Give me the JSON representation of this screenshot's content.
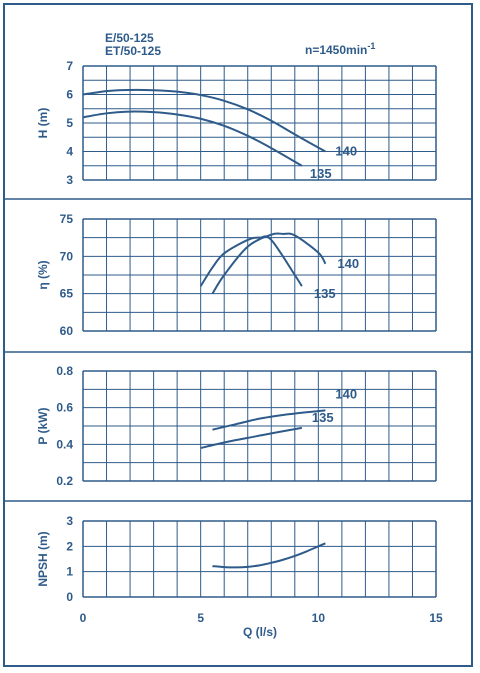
{
  "header": {
    "model_line1": "E/50-125",
    "model_line2": "ET/50-125",
    "speed_prefix": "n=1450min",
    "speed_sup": "-1"
  },
  "colors": {
    "primary": "#2e5b8a"
  },
  "chart_data": [
    {
      "type": "line",
      "ylabel": "H (m)",
      "xlim": [
        0,
        15
      ],
      "ylim": [
        3,
        7
      ],
      "yticks": [
        3,
        4,
        5,
        6,
        7
      ],
      "grid": true,
      "series": [
        {
          "name": "140",
          "x": [
            0,
            1,
            2,
            3,
            4,
            5,
            6,
            7,
            8,
            9,
            10.3
          ],
          "y": [
            6.0,
            6.12,
            6.16,
            6.15,
            6.1,
            5.98,
            5.78,
            5.48,
            5.08,
            4.6,
            4.0
          ]
        },
        {
          "name": "135",
          "x": [
            0,
            1,
            2,
            3,
            4,
            5,
            6,
            7,
            8,
            9.3
          ],
          "y": [
            5.2,
            5.34,
            5.4,
            5.38,
            5.3,
            5.15,
            4.9,
            4.55,
            4.12,
            3.5
          ]
        }
      ]
    },
    {
      "type": "line",
      "ylabel": "η (%)",
      "xlim": [
        0,
        15
      ],
      "ylim": [
        60,
        75
      ],
      "yticks": [
        60,
        65,
        70,
        75
      ],
      "grid": true,
      "series": [
        {
          "name": "140",
          "x": [
            5.5,
            6,
            7,
            8,
            8.5,
            9,
            10,
            10.3
          ],
          "y": [
            65,
            67.5,
            71.3,
            72.9,
            73,
            72.8,
            70.5,
            69
          ]
        },
        {
          "name": "135",
          "x": [
            5,
            5.5,
            6,
            7,
            7.5,
            8,
            9,
            9.3
          ],
          "y": [
            66,
            68.5,
            70.4,
            72.2,
            72.5,
            72.2,
            67.5,
            66
          ]
        }
      ]
    },
    {
      "type": "line",
      "ylabel": "P (kW)",
      "xlim": [
        0,
        15
      ],
      "ylim": [
        0.2,
        0.8
      ],
      "yticks": [
        0.2,
        0.4,
        0.6,
        0.8
      ],
      "grid": true,
      "series": [
        {
          "name": "140",
          "x": [
            5.5,
            6.5,
            7.5,
            8.5,
            9.5,
            10.3
          ],
          "y": [
            0.48,
            0.51,
            0.54,
            0.56,
            0.575,
            0.585
          ]
        },
        {
          "name": "135",
          "x": [
            5,
            6,
            7,
            8,
            9.3
          ],
          "y": [
            0.38,
            0.41,
            0.435,
            0.46,
            0.49
          ]
        }
      ]
    },
    {
      "type": "line",
      "xlabel": "Q (l/s)",
      "ylabel": "NPSH (m)",
      "xlim": [
        0,
        15
      ],
      "ylim": [
        0,
        3
      ],
      "yticks": [
        0,
        1,
        2,
        3
      ],
      "xticks": [
        0,
        5,
        10,
        15
      ],
      "grid": true,
      "series": [
        {
          "name": "",
          "x": [
            5.5,
            6,
            6.5,
            7,
            7.5,
            8,
            8.5,
            9,
            9.5,
            10,
            10.3
          ],
          "y": [
            1.22,
            1.18,
            1.17,
            1.19,
            1.25,
            1.35,
            1.47,
            1.62,
            1.8,
            2.0,
            2.12
          ]
        }
      ]
    }
  ]
}
